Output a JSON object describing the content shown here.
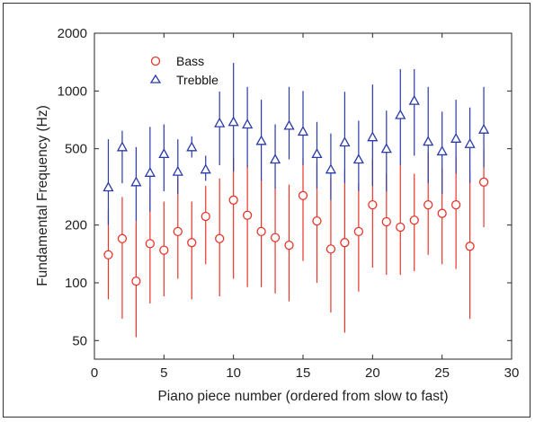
{
  "chart_data": {
    "type": "scatter",
    "xlabel": "Piano piece number (ordered from slow to fast)",
    "ylabel": "Fundamental Frequency (Hz)",
    "xlim": [
      0,
      30
    ],
    "ylim": [
      40,
      2000
    ],
    "yscale": "log",
    "xticks": [
      0,
      5,
      10,
      15,
      20,
      25,
      30
    ],
    "yticks": [
      50,
      100,
      200,
      500,
      1000,
      2000
    ],
    "legend_position": "top-left",
    "series": [
      {
        "name": "Bass",
        "marker": "circle",
        "color": "#e8352a",
        "x": [
          1,
          2,
          3,
          4,
          5,
          6,
          7,
          8,
          9,
          10,
          11,
          12,
          13,
          14,
          15,
          16,
          17,
          18,
          19,
          20,
          21,
          22,
          23,
          24,
          25,
          26,
          27,
          28
        ],
        "y": [
          140,
          170,
          102,
          160,
          148,
          185,
          162,
          222,
          170,
          270,
          225,
          185,
          172,
          157,
          285,
          210,
          150,
          162,
          185,
          255,
          208,
          195,
          212,
          255,
          230,
          255,
          155,
          335
        ],
        "err_low": [
          82,
          65,
          52,
          78,
          85,
          105,
          82,
          125,
          85,
          105,
          95,
          95,
          88,
          80,
          130,
          100,
          70,
          55,
          90,
          120,
          110,
          110,
          115,
          140,
          125,
          118,
          65,
          195
        ],
        "err_high": [
          240,
          280,
          210,
          310,
          265,
          355,
          265,
          320,
          350,
          450,
          410,
          350,
          315,
          325,
          445,
          420,
          350,
          390,
          330,
          440,
          370,
          410,
          370,
          480,
          395,
          455,
          385,
          495
        ]
      },
      {
        "name": "Trebble",
        "marker": "triangle",
        "color": "#2a3aa8",
        "x": [
          1,
          2,
          3,
          4,
          5,
          6,
          7,
          8,
          9,
          10,
          11,
          12,
          13,
          14,
          15,
          16,
          17,
          18,
          19,
          20,
          21,
          22,
          23,
          24,
          25,
          26,
          27,
          28
        ],
        "y": [
          315,
          510,
          335,
          375,
          470,
          380,
          510,
          390,
          680,
          690,
          670,
          550,
          440,
          660,
          615,
          470,
          390,
          540,
          440,
          575,
          500,
          750,
          890,
          545,
          485,
          565,
          530,
          630
        ],
        "err_low": [
          200,
          330,
          210,
          235,
          300,
          290,
          450,
          340,
          410,
          380,
          400,
          340,
          310,
          440,
          410,
          310,
          270,
          330,
          300,
          320,
          300,
          410,
          460,
          330,
          290,
          370,
          330,
          400
        ],
        "err_high": [
          560,
          620,
          510,
          650,
          670,
          560,
          580,
          460,
          1100,
          1400,
          1050,
          900,
          670,
          1050,
          1000,
          690,
          600,
          990,
          700,
          1080,
          790,
          1300,
          1300,
          1050,
          780,
          900,
          820,
          1050
        ]
      }
    ]
  }
}
